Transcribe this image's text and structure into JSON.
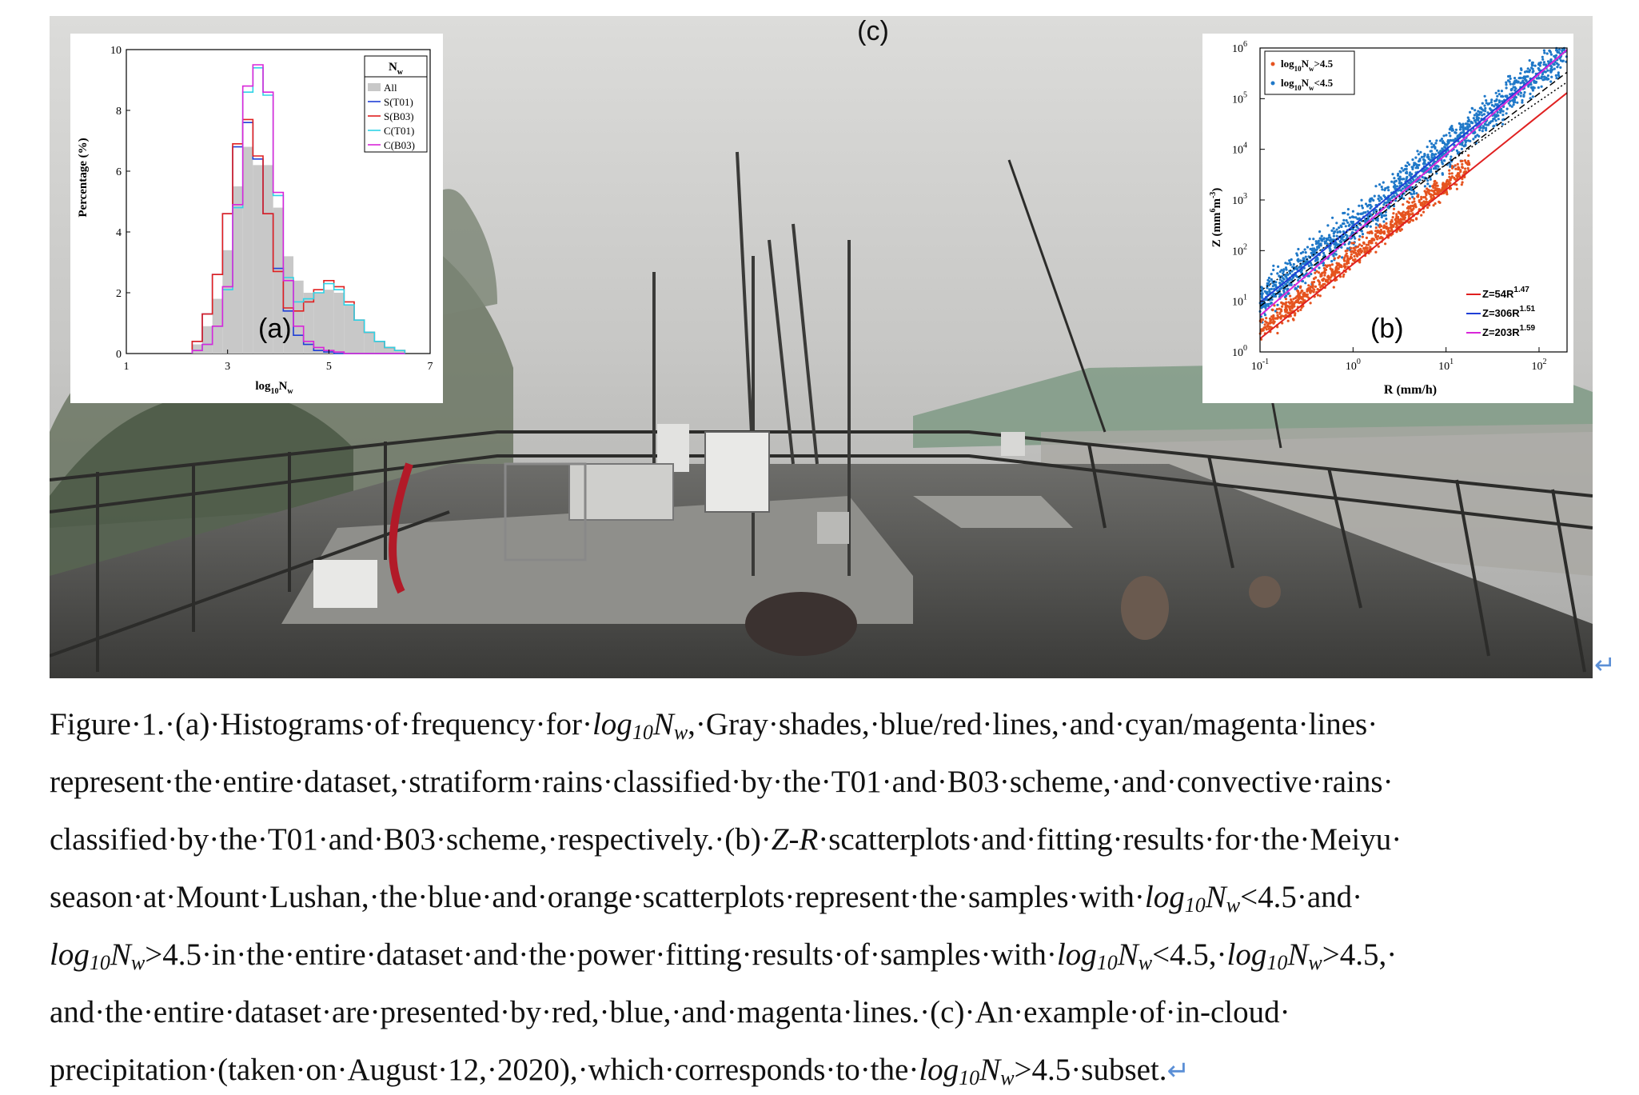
{
  "figure": {
    "photo_label": "(c)",
    "panel_a": {
      "label": "(a)",
      "ylabel": "Percentage (%)",
      "xlabel_base": "log",
      "xlabel_sub": "10",
      "xlabel_tail": "N",
      "xlabel_tail_sub": "w",
      "legend_title": "N",
      "legend_title_sub": "w",
      "legend": [
        "All",
        "S(T01)",
        "S(B03)",
        "C(T01)",
        "C(B03)"
      ],
      "legend_colors": [
        "#c8c8c8",
        "#1f3fd6",
        "#e02020",
        "#2fd3e6",
        "#d926d9"
      ],
      "xticks": [
        "1",
        "3",
        "5",
        "7"
      ],
      "yticks": [
        "0",
        "2",
        "4",
        "6",
        "8",
        "10"
      ]
    },
    "panel_b": {
      "label": "(b)",
      "ylabel": "Z (mm",
      "ylabel_sup": "6",
      "ylabel_mid": "m",
      "ylabel_sup2": "-3",
      "ylabel_end": ")",
      "xlabel": "R (mm/h)",
      "legend": [
        {
          "pre": "log",
          "sub": "10",
          "mid": "N",
          "sub2": "w",
          "post": ">4.5",
          "color": "#e5531f"
        },
        {
          "pre": "log",
          "sub": "10",
          "mid": "N",
          "sub2": "w",
          "post": "<4.5",
          "color": "#1f78c8"
        }
      ],
      "fits": [
        {
          "text": "Z=54R",
          "exp": "1.47",
          "color": "#e02020"
        },
        {
          "text": "Z=306R",
          "exp": "1.51",
          "color": "#1f3fd6"
        },
        {
          "text": "Z=203R",
          "exp": "1.59",
          "color": "#d926d9"
        }
      ],
      "xticks": [
        {
          "b": "10",
          "e": "-1"
        },
        {
          "b": "10",
          "e": "0"
        },
        {
          "b": "10",
          "e": "1"
        },
        {
          "b": "10",
          "e": "2"
        }
      ],
      "yticks": [
        {
          "b": "10",
          "e": "0"
        },
        {
          "b": "10",
          "e": "1"
        },
        {
          "b": "10",
          "e": "2"
        },
        {
          "b": "10",
          "e": "3"
        },
        {
          "b": "10",
          "e": "4"
        },
        {
          "b": "10",
          "e": "5"
        },
        {
          "b": "10",
          "e": "6"
        }
      ]
    }
  },
  "chart_data": [
    {
      "type": "bar",
      "panel": "(a)",
      "xlabel": "log10Nw",
      "ylabel": "Percentage (%)",
      "xlim": [
        1,
        7
      ],
      "ylim": [
        0,
        10
      ],
      "x": [
        2.4,
        2.6,
        2.8,
        3.0,
        3.2,
        3.4,
        3.6,
        3.8,
        4.0,
        4.2,
        4.4,
        4.6,
        4.8,
        5.0,
        5.2,
        5.4,
        5.6,
        5.8,
        6.0,
        6.2,
        6.4
      ],
      "series": [
        {
          "name": "All",
          "values": [
            0.3,
            0.9,
            1.8,
            3.4,
            5.5,
            6.8,
            6.2,
            6.2,
            4.8,
            3.2,
            2.4,
            2.0,
            2.0,
            2.1,
            2.0,
            1.6,
            1.1,
            0.7,
            0.4,
            0.2,
            0.1
          ]
        },
        {
          "name": "S(T01)",
          "values": [
            0.4,
            1.3,
            2.6,
            4.6,
            6.8,
            7.6,
            6.4,
            4.6,
            2.8,
            1.4,
            0.6,
            0.3,
            0.1,
            0.05,
            0.0,
            0.0,
            0.0,
            0.0,
            0.0,
            0.0,
            0.0
          ]
        },
        {
          "name": "S(B03)",
          "values": [
            0.4,
            1.3,
            2.6,
            4.6,
            6.9,
            7.7,
            6.5,
            4.6,
            2.7,
            1.5,
            1.4,
            1.7,
            2.1,
            2.4,
            2.2,
            1.7,
            1.1,
            0.7,
            0.4,
            0.2,
            0.1
          ]
        },
        {
          "name": "C(T01)",
          "values": [
            0.1,
            0.3,
            0.9,
            2.1,
            4.8,
            8.6,
            9.4,
            8.5,
            5.2,
            2.5,
            1.7,
            1.8,
            2.0,
            2.3,
            2.1,
            1.6,
            1.1,
            0.7,
            0.4,
            0.2,
            0.1
          ]
        },
        {
          "name": "C(B03)",
          "values": [
            0.1,
            0.3,
            0.9,
            2.2,
            4.9,
            8.8,
            9.5,
            8.6,
            5.3,
            2.4,
            0.9,
            0.4,
            0.2,
            0.1,
            0.05,
            0.0,
            0.0,
            0.0,
            0.0,
            0.0,
            0.0
          ]
        }
      ]
    },
    {
      "type": "scatter",
      "panel": "(b)",
      "xlabel": "R (mm/h)",
      "ylabel": "Z (mm6m-3)",
      "xscale": "log",
      "yscale": "log",
      "xlim": [
        0.1,
        200
      ],
      "ylim": [
        1,
        1000000
      ],
      "series": [
        {
          "name": "log10Nw>4.5",
          "color": "#e5531f",
          "band": {
            "log10Z_at_log10R": [
              [
                -1,
                0.4
              ],
              [
                0,
                1.9
              ],
              [
                1,
                3.3
              ],
              [
                1.25,
                3.7
              ]
            ],
            "spread": 0.35
          }
        },
        {
          "name": "log10Nw<4.5",
          "color": "#1f78c8",
          "band": {
            "log10Z_at_log10R": [
              [
                -1,
                1.0
              ],
              [
                0,
                2.5
              ],
              [
                1,
                4.0
              ],
              [
                2.3,
                6.0
              ]
            ],
            "spread": 0.55
          }
        }
      ],
      "fits": [
        {
          "label": "Z=54R1.47",
          "a": 54,
          "b": 1.47,
          "color": "#e02020"
        },
        {
          "label": "Z=306R1.51",
          "a": 306,
          "b": 1.51,
          "color": "#1f3fd6"
        },
        {
          "label": "Z=203R1.59",
          "a": 203,
          "b": 1.59,
          "color": "#d926d9"
        }
      ]
    }
  ],
  "caption": {
    "l1": [
      "Figure·1.·(a)·Histograms·of·frequency·for·",
      "log",
      "10",
      "N",
      "w",
      ",·Gray·shades,·blue/red·lines,·and·cyan/magenta·lines·"
    ],
    "l2": "represent·the·entire·dataset,·stratiform·rains·classified·by·the·T01·and·B03·scheme,·and·convective·rains·",
    "l3_a": "classified·by·the·T01·and·B03·scheme,·respectively.·(b)·",
    "l3_b": "Z-R",
    "l3_c": "·scatterplots·and·fitting·results·for·the·Meiyu·",
    "l4_a": "season·at·Mount·Lushan,·the·blue·and·orange·scatterplots·represent·the·samples·with·",
    "l4_c": "<4.5·and·",
    "l5_c": ">4.5·in·the·entire·dataset·and·the·power·fitting·results·of·samples·with·",
    "l5_e": "<4.5,·",
    "l5_g": ">4.5,·",
    "l6": "and·the·entire·dataset·are·presented·by·red,·blue,·and·magenta·lines.·(c)·An·example·of·in-cloud·",
    "l7_a": "precipitation·(taken·on·August·12,·2020),·which·corresponds·to·the·",
    "l7_c": ">4.5·subset.",
    "var_log": "log",
    "var_sub": "10",
    "var_N": "N",
    "var_w": "w",
    "return_mark": "↵"
  }
}
